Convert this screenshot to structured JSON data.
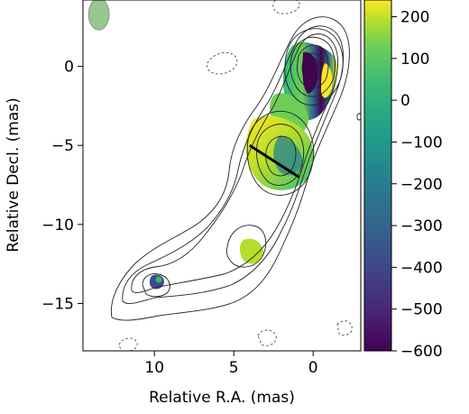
{
  "chart_data": {
    "type": "heatmap",
    "title": "",
    "xlabel": "Relative R.A. (mas)",
    "ylabel": "Relative Decl. (mas)",
    "xlim": [
      14.5,
      -3.0
    ],
    "ylim": [
      -18.0,
      4.2
    ],
    "x_ticks": [
      10,
      5,
      0
    ],
    "x_tick_labels": [
      "10",
      "5",
      "0"
    ],
    "y_ticks": [
      0,
      -5,
      -10,
      -15
    ],
    "y_tick_labels": [
      "0",
      "−5",
      "−10",
      "−15"
    ],
    "colorbar": {
      "range": [
        -600,
        240
      ],
      "ticks": [
        200,
        100,
        0,
        -100,
        -200,
        -300,
        -400,
        -500,
        -600
      ],
      "tick_labels": [
        "200",
        "100",
        "0",
        "−100",
        "−200",
        "−300",
        "−400",
        "−500",
        "−600"
      ],
      "colormap": "viridis"
    },
    "beam": {
      "x": 13.5,
      "y": 3.3,
      "major": 2.0,
      "minor": 1.3,
      "angle_deg": 0,
      "color": "#8cc084"
    },
    "slice_line": {
      "x1": 4.0,
      "y1": -5.0,
      "x2": 0.9,
      "y2": -7.0
    },
    "grid": false,
    "legend": "none"
  }
}
